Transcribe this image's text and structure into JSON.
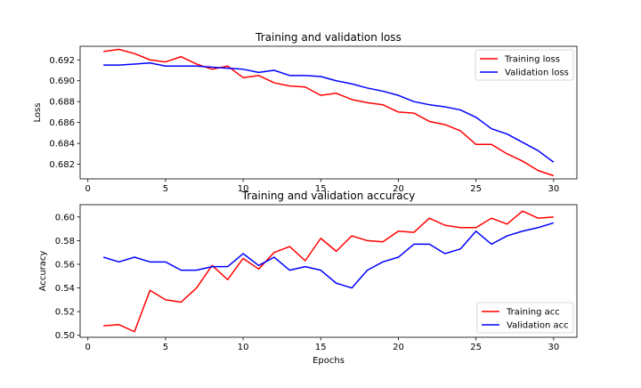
{
  "chart_data": [
    {
      "type": "line",
      "title": "Training and validation loss",
      "xlabel": "",
      "ylabel": "Loss",
      "xlim": [
        -0.5,
        31.5
      ],
      "ylim": [
        0.6806,
        0.6933
      ],
      "xticks": [
        0,
        5,
        10,
        15,
        20,
        25,
        30
      ],
      "yticks": [
        0.682,
        0.684,
        0.686,
        0.688,
        0.69,
        0.692
      ],
      "ytick_labels": [
        "0.682",
        "0.684",
        "0.686",
        "0.688",
        "0.690",
        "0.692"
      ],
      "legend_position": "top-right",
      "x": [
        1,
        2,
        3,
        4,
        5,
        6,
        7,
        8,
        9,
        10,
        11,
        12,
        13,
        14,
        15,
        16,
        17,
        18,
        19,
        20,
        21,
        22,
        23,
        24,
        25,
        26,
        27,
        28,
        29,
        30
      ],
      "series": [
        {
          "name": "Training loss",
          "color": "#ff0000",
          "values": [
            0.6928,
            0.693,
            0.6926,
            0.692,
            0.6918,
            0.6923,
            0.6916,
            0.6911,
            0.6914,
            0.6903,
            0.6905,
            0.6898,
            0.6895,
            0.6894,
            0.6886,
            0.6888,
            0.6882,
            0.6879,
            0.6877,
            0.687,
            0.6869,
            0.6861,
            0.6858,
            0.6852,
            0.6839,
            0.6839,
            0.683,
            0.6823,
            0.6814,
            0.6809
          ]
        },
        {
          "name": "Validation loss",
          "color": "#0000ff",
          "values": [
            0.6915,
            0.6915,
            0.6916,
            0.6917,
            0.6914,
            0.6914,
            0.6914,
            0.6913,
            0.6912,
            0.6911,
            0.6908,
            0.691,
            0.6905,
            0.6905,
            0.6904,
            0.69,
            0.6897,
            0.6893,
            0.689,
            0.6886,
            0.688,
            0.6877,
            0.6875,
            0.6872,
            0.6865,
            0.6854,
            0.6849,
            0.6841,
            0.6833,
            0.6822
          ]
        }
      ]
    },
    {
      "type": "line",
      "title": "Training and validation accuracy",
      "xlabel": "Epochs",
      "ylabel": "Accuracy",
      "xlim": [
        -0.5,
        31.5
      ],
      "ylim": [
        0.4983,
        0.6104
      ],
      "xticks": [
        0,
        5,
        10,
        15,
        20,
        25,
        30
      ],
      "yticks": [
        0.5,
        0.52,
        0.54,
        0.56,
        0.58,
        0.6
      ],
      "ytick_labels": [
        "0.50",
        "0.52",
        "0.54",
        "0.56",
        "0.58",
        "0.60"
      ],
      "legend_position": "bottom-right",
      "x": [
        1,
        2,
        3,
        4,
        5,
        6,
        7,
        8,
        9,
        10,
        11,
        12,
        13,
        14,
        15,
        16,
        17,
        18,
        19,
        20,
        21,
        22,
        23,
        24,
        25,
        26,
        27,
        28,
        29,
        30
      ],
      "series": [
        {
          "name": "Training acc",
          "color": "#ff0000",
          "values": [
            0.508,
            0.509,
            0.503,
            0.538,
            0.53,
            0.528,
            0.54,
            0.559,
            0.547,
            0.565,
            0.556,
            0.57,
            0.575,
            0.563,
            0.582,
            0.571,
            0.584,
            0.58,
            0.579,
            0.588,
            0.587,
            0.599,
            0.593,
            0.591,
            0.591,
            0.599,
            0.594,
            0.605,
            0.599,
            0.6
          ]
        },
        {
          "name": "Validation acc",
          "color": "#0000ff",
          "values": [
            0.566,
            0.562,
            0.566,
            0.562,
            0.562,
            0.555,
            0.555,
            0.558,
            0.558,
            0.569,
            0.559,
            0.566,
            0.555,
            0.558,
            0.555,
            0.544,
            0.54,
            0.555,
            0.562,
            0.566,
            0.577,
            0.577,
            0.569,
            0.573,
            0.588,
            0.577,
            0.584,
            0.588,
            0.591,
            0.595
          ]
        }
      ]
    }
  ]
}
